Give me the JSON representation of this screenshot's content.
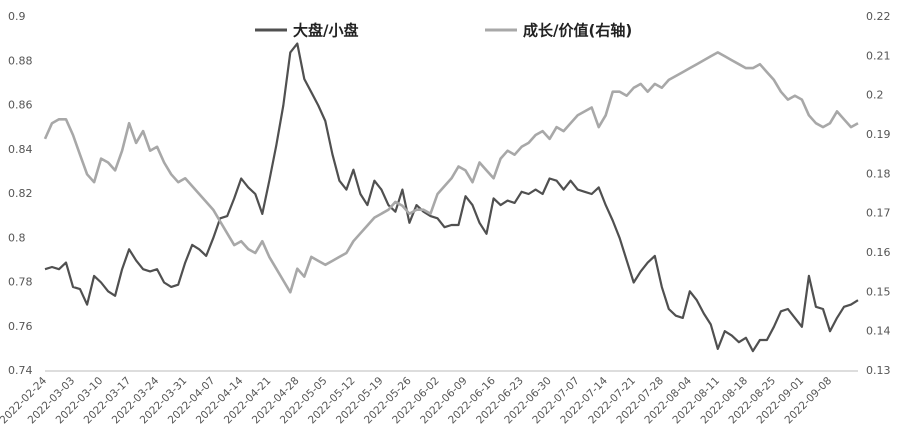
{
  "chart_data": {
    "type": "line",
    "categories": [
      "2022-02-24",
      null,
      null,
      null,
      "2022-03-03",
      null,
      null,
      null,
      "2022-03-10",
      null,
      null,
      null,
      "2022-03-17",
      null,
      null,
      null,
      "2022-03-24",
      null,
      null,
      null,
      "2022-03-31",
      null,
      null,
      null,
      "2022-04-07",
      null,
      null,
      null,
      "2022-04-14",
      null,
      null,
      null,
      "2022-04-21",
      null,
      null,
      null,
      "2022-04-28",
      null,
      null,
      null,
      "2022-05-05",
      null,
      null,
      null,
      "2022-05-12",
      null,
      null,
      null,
      "2022-05-19",
      null,
      null,
      null,
      "2022-05-26",
      null,
      null,
      null,
      "2022-06-02",
      null,
      null,
      null,
      "2022-06-09",
      null,
      null,
      null,
      "2022-06-16",
      null,
      null,
      null,
      "2022-06-23",
      null,
      null,
      null,
      "2022-06-30",
      null,
      null,
      null,
      "2022-07-07",
      null,
      null,
      null,
      "2022-07-14",
      null,
      null,
      null,
      "2022-07-21",
      null,
      null,
      null,
      "2022-07-28",
      null,
      null,
      null,
      "2022-08-04",
      null,
      null,
      null,
      "2022-08-11",
      null,
      null,
      null,
      "2022-08-18",
      null,
      null,
      null,
      "2022-08-25",
      null,
      null,
      null,
      "2022-09-01",
      null,
      null,
      null,
      "2022-09-08",
      null,
      null,
      null,
      null
    ],
    "series": [
      {
        "name": "大盘/小盘",
        "color": "#505050",
        "values": [
          0.786,
          0.787,
          0.786,
          0.789,
          0.778,
          0.777,
          0.77,
          0.783,
          0.78,
          0.776,
          0.774,
          0.786,
          0.795,
          0.79,
          0.786,
          0.785,
          0.786,
          0.78,
          0.778,
          0.779,
          0.789,
          0.797,
          0.795,
          0.792,
          0.8,
          0.809,
          0.81,
          0.818,
          0.827,
          0.823,
          0.82,
          0.811,
          0.826,
          0.842,
          0.86,
          0.884,
          0.888,
          0.872,
          0.866,
          0.86,
          0.853,
          0.838,
          0.826,
          0.822,
          0.831,
          0.82,
          0.815,
          0.826,
          0.822,
          0.815,
          0.812,
          0.822,
          0.807,
          0.815,
          0.812,
          0.81,
          0.809,
          0.805,
          0.806,
          0.806,
          0.819,
          0.815,
          0.807,
          0.802,
          0.818,
          0.815,
          0.817,
          0.816,
          0.821,
          0.82,
          0.822,
          0.82,
          0.827,
          0.826,
          0.822,
          0.826,
          0.822,
          0.821,
          0.82,
          0.823,
          0.815,
          0.808,
          0.8,
          0.79,
          0.78,
          0.785,
          0.789,
          0.792,
          0.778,
          0.768,
          0.765,
          0.764,
          0.776,
          0.772,
          0.766,
          0.761,
          0.75,
          0.758,
          0.756,
          0.753,
          0.755,
          0.749,
          0.754,
          0.754,
          0.76,
          0.767,
          0.768,
          0.764,
          0.76,
          0.783,
          0.769,
          0.768,
          0.758,
          0.764,
          0.769,
          0.77,
          0.772
        ]
      },
      {
        "name": "成长/价值(右轴)",
        "color": "#a8a8a8",
        "axis": "y2",
        "values": [
          0.189,
          0.193,
          0.194,
          0.194,
          0.19,
          0.185,
          0.18,
          0.178,
          0.184,
          0.183,
          0.181,
          0.186,
          0.193,
          0.188,
          0.191,
          0.186,
          0.187,
          0.183,
          0.18,
          0.178,
          0.179,
          0.177,
          0.175,
          0.173,
          0.171,
          0.168,
          0.165,
          0.162,
          0.163,
          0.161,
          0.16,
          0.163,
          0.159,
          0.156,
          0.153,
          0.15,
          0.156,
          0.154,
          0.159,
          0.158,
          0.157,
          0.158,
          0.159,
          0.16,
          0.163,
          0.165,
          0.167,
          0.169,
          0.17,
          0.171,
          0.173,
          0.172,
          0.17,
          0.171,
          0.171,
          0.17,
          0.175,
          0.177,
          0.179,
          0.182,
          0.181,
          0.178,
          0.183,
          0.181,
          0.179,
          0.184,
          0.186,
          0.185,
          0.187,
          0.188,
          0.19,
          0.191,
          0.189,
          0.192,
          0.191,
          0.193,
          0.195,
          0.196,
          0.197,
          0.192,
          0.195,
          0.201,
          0.201,
          0.2,
          0.202,
          0.203,
          0.201,
          0.203,
          0.202,
          0.204,
          0.205,
          0.206,
          0.207,
          0.208,
          0.209,
          0.21,
          0.211,
          0.21,
          0.209,
          0.208,
          0.207,
          0.207,
          0.208,
          0.206,
          0.204,
          0.201,
          0.199,
          0.2,
          0.199,
          0.195,
          0.193,
          0.192,
          0.193,
          0.196,
          0.194,
          0.192,
          0.193
        ]
      }
    ],
    "ylim": [
      0.74,
      0.9
    ],
    "yticks": [
      0.74,
      0.76,
      0.78,
      0.8,
      0.82,
      0.84,
      0.86,
      0.88,
      0.9
    ],
    "y2lim": [
      0.13,
      0.22
    ],
    "y2ticks": [
      0.13,
      0.14,
      0.15,
      0.16,
      0.17,
      0.18,
      0.19,
      0.2,
      0.21,
      0.22
    ],
    "grid": false,
    "legend": "top"
  }
}
